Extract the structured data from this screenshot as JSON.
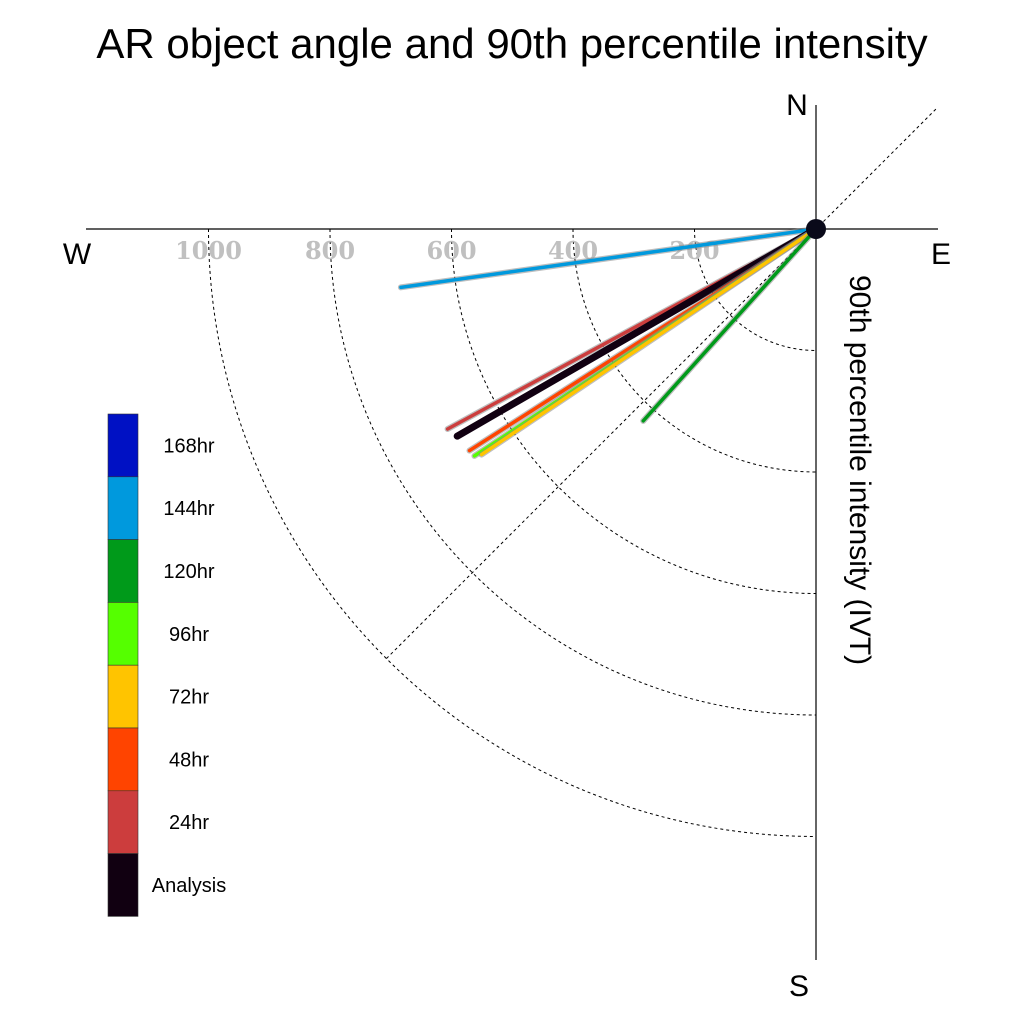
{
  "chart_data": {
    "type": "polar-vector",
    "title": "AR object angle and 90th percentile intensity",
    "ylabel": "90th percentile intensity (IVT)",
    "compass": {
      "n": "N",
      "s": "S",
      "e": "E",
      "w": "W"
    },
    "radial_ticks": [
      200,
      400,
      600,
      800,
      1000
    ],
    "rlim": [
      0,
      1200
    ],
    "grid": true,
    "legend_position": "left",
    "series": [
      {
        "name": "144hr",
        "color": "#0099dd",
        "angle_deg": -8.0,
        "magnitude": 690
      },
      {
        "name": "24hr",
        "color": "#cc3d3d",
        "angle_deg": -28.5,
        "magnitude": 690
      },
      {
        "name": "Analysis",
        "color": "#110011",
        "angle_deg": -30.0,
        "magnitude": 682
      },
      {
        "name": "48hr",
        "color": "#ff4400",
        "angle_deg": -32.6,
        "magnitude": 677
      },
      {
        "name": "96hr",
        "color": "#55ff00",
        "angle_deg": -33.6,
        "magnitude": 675
      },
      {
        "name": "72hr",
        "color": "#ffc400",
        "angle_deg": -34.0,
        "magnitude": 664
      },
      {
        "name": "120hr",
        "color": "#009a1a",
        "angle_deg": -48.0,
        "magnitude": 425
      }
    ],
    "legend": [
      {
        "label": "168hr",
        "color": "#0011c4"
      },
      {
        "label": "144hr",
        "color": "#0099dd"
      },
      {
        "label": "120hr",
        "color": "#009a1a"
      },
      {
        "label": "96hr",
        "color": "#55ff00"
      },
      {
        "label": "72hr",
        "color": "#ffc400"
      },
      {
        "label": "48hr",
        "color": "#ff4400"
      },
      {
        "label": "24hr",
        "color": "#cc3d3d"
      },
      {
        "label": "Analysis",
        "color": "#110011"
      }
    ]
  }
}
